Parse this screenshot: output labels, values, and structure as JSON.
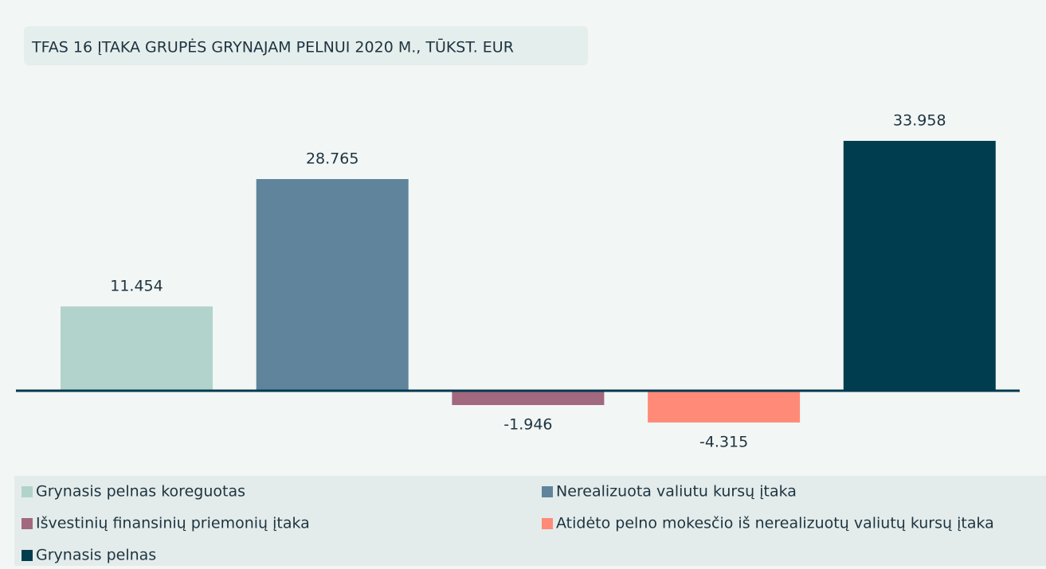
{
  "chart_data": {
    "type": "bar",
    "title": "TFAS 16 ĮTAKA GRUPĖS GRYNAJAM PELNUI 2020 M., TŪKST. EUR",
    "series": [
      {
        "name": "Grynasis pelnas koreguotas",
        "color": "#b2d3cb",
        "values": [
          11454
        ],
        "value_labels": [
          "11.454"
        ]
      },
      {
        "name": "Nerealizuota valiutu kursų įtaka",
        "color": "#5f849c",
        "values": [
          28765
        ],
        "value_labels": [
          "28.765"
        ]
      },
      {
        "name": "Išvestinių finansinių priemonių įtaka",
        "color": "#a1687f",
        "values": [
          -1946
        ],
        "value_labels": [
          "-1.946"
        ]
      },
      {
        "name": "Atidėto pelno mokesčio iš nerealizuotų valiutų kursų įtaka",
        "color": "#ff8a78",
        "values": [
          -4315
        ],
        "value_labels": [
          "-4.315"
        ]
      },
      {
        "name": "Grynasis pelnas",
        "color": "#003d4f",
        "values": [
          33958
        ],
        "value_labels": [
          "33.958"
        ]
      }
    ],
    "legend": "bottom"
  }
}
